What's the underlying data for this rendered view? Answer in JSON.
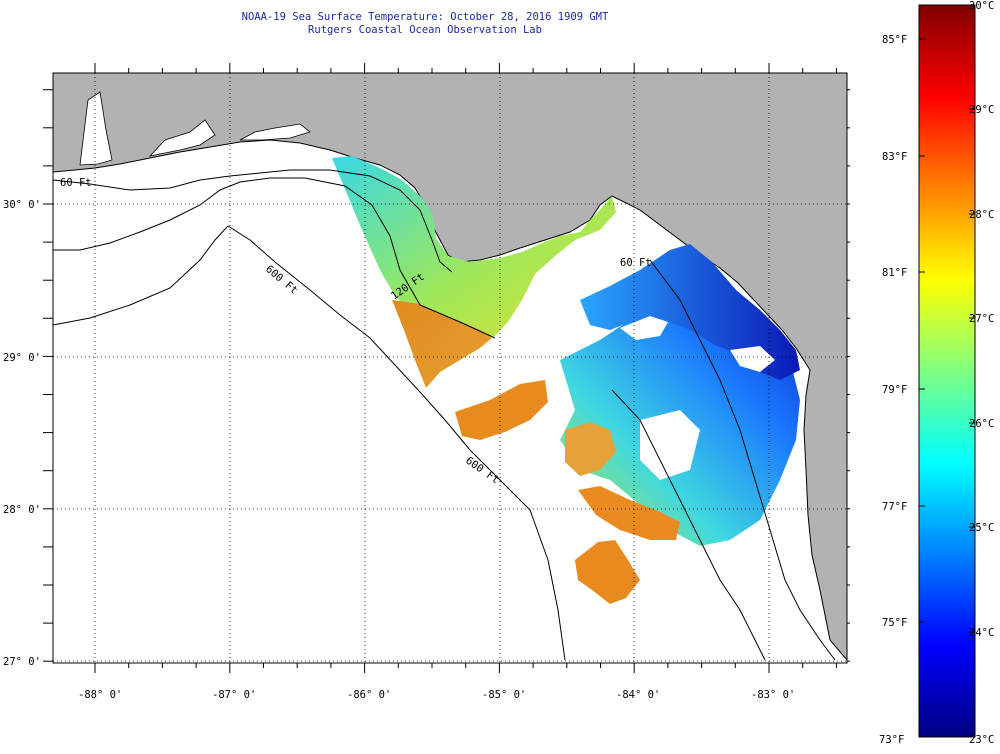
{
  "title": {
    "line1": "NOAA-19 Sea Surface Temperature:  October 28, 2016 1909 GMT",
    "line2": "Rutgers Coastal Ocean Observation Lab"
  },
  "axes": {
    "lon_labels": [
      "-88° 0'",
      "-87° 0'",
      "-86° 0'",
      "-85° 0'",
      "-84° 0'",
      "-83° 0'"
    ],
    "lat_labels": [
      "30° 0'",
      "29° 0'",
      "28° 0'",
      "27° 0'"
    ],
    "grid": "dotted"
  },
  "isobaths": {
    "label_60": "60 Ft",
    "label_120": "120 Ft",
    "label_600": "600 Ft",
    "label_600b": "600 Ft",
    "label_60b": "60 Ft"
  },
  "colorbar": {
    "fahrenheit_labels": [
      "85°F",
      "83°F",
      "81°F",
      "79°F",
      "77°F",
      "75°F",
      "73°F"
    ],
    "celsius_labels": [
      "30°C",
      "29°C",
      "28°C",
      "27°C",
      "26°C",
      "25°C",
      "24°C",
      "23°C"
    ],
    "range_celsius": [
      23,
      30
    ],
    "colors": [
      "#00007f",
      "#0000ff",
      "#0080ff",
      "#00ffff",
      "#80ff80",
      "#ffff00",
      "#ff8000",
      "#ff0000",
      "#7f0000"
    ]
  },
  "colors": {
    "land": "#b2b2b2",
    "cloud_mask": "#ffffff",
    "title_text": "#1a2a9a"
  }
}
